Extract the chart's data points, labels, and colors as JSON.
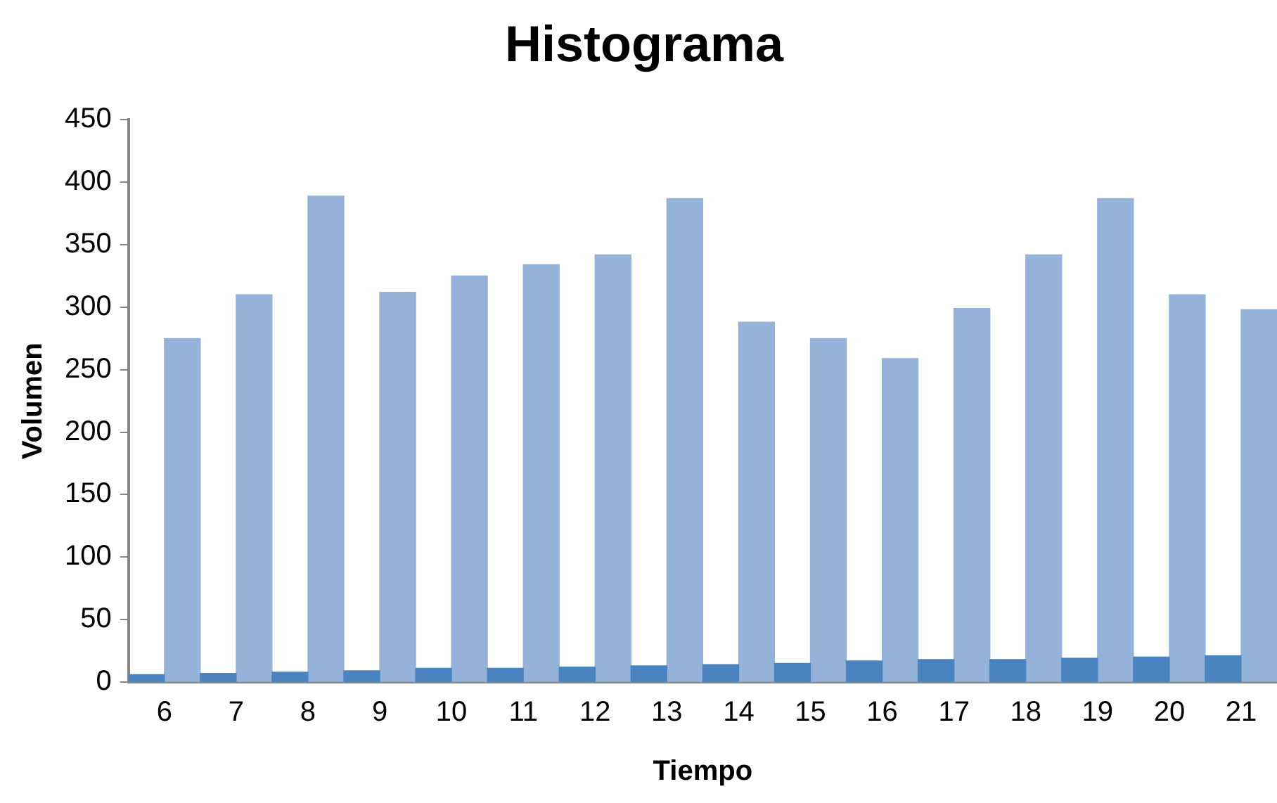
{
  "chart_data": {
    "type": "bar",
    "title": "Histograma",
    "xlabel": "Tiempo",
    "ylabel": "Volumen",
    "categories": [
      "6",
      "7",
      "8",
      "9",
      "10",
      "11",
      "12",
      "13",
      "14",
      "15",
      "16",
      "17",
      "18",
      "19",
      "20",
      "21"
    ],
    "series": [
      {
        "color": "#4a84c0",
        "values": [
          6,
          7,
          8,
          9,
          11,
          11,
          12,
          13,
          14,
          15,
          17,
          18,
          18,
          19,
          20,
          21
        ]
      },
      {
        "color": "#95b3d9",
        "values": [
          275,
          310,
          389,
          312,
          325,
          334,
          342,
          387,
          288,
          275,
          259,
          299,
          342,
          387,
          310,
          298
        ]
      }
    ],
    "ylim": [
      0,
      450
    ],
    "yticks": [
      0,
      50,
      100,
      150,
      200,
      250,
      300,
      350,
      400,
      450
    ],
    "grid": false,
    "legend": false
  }
}
